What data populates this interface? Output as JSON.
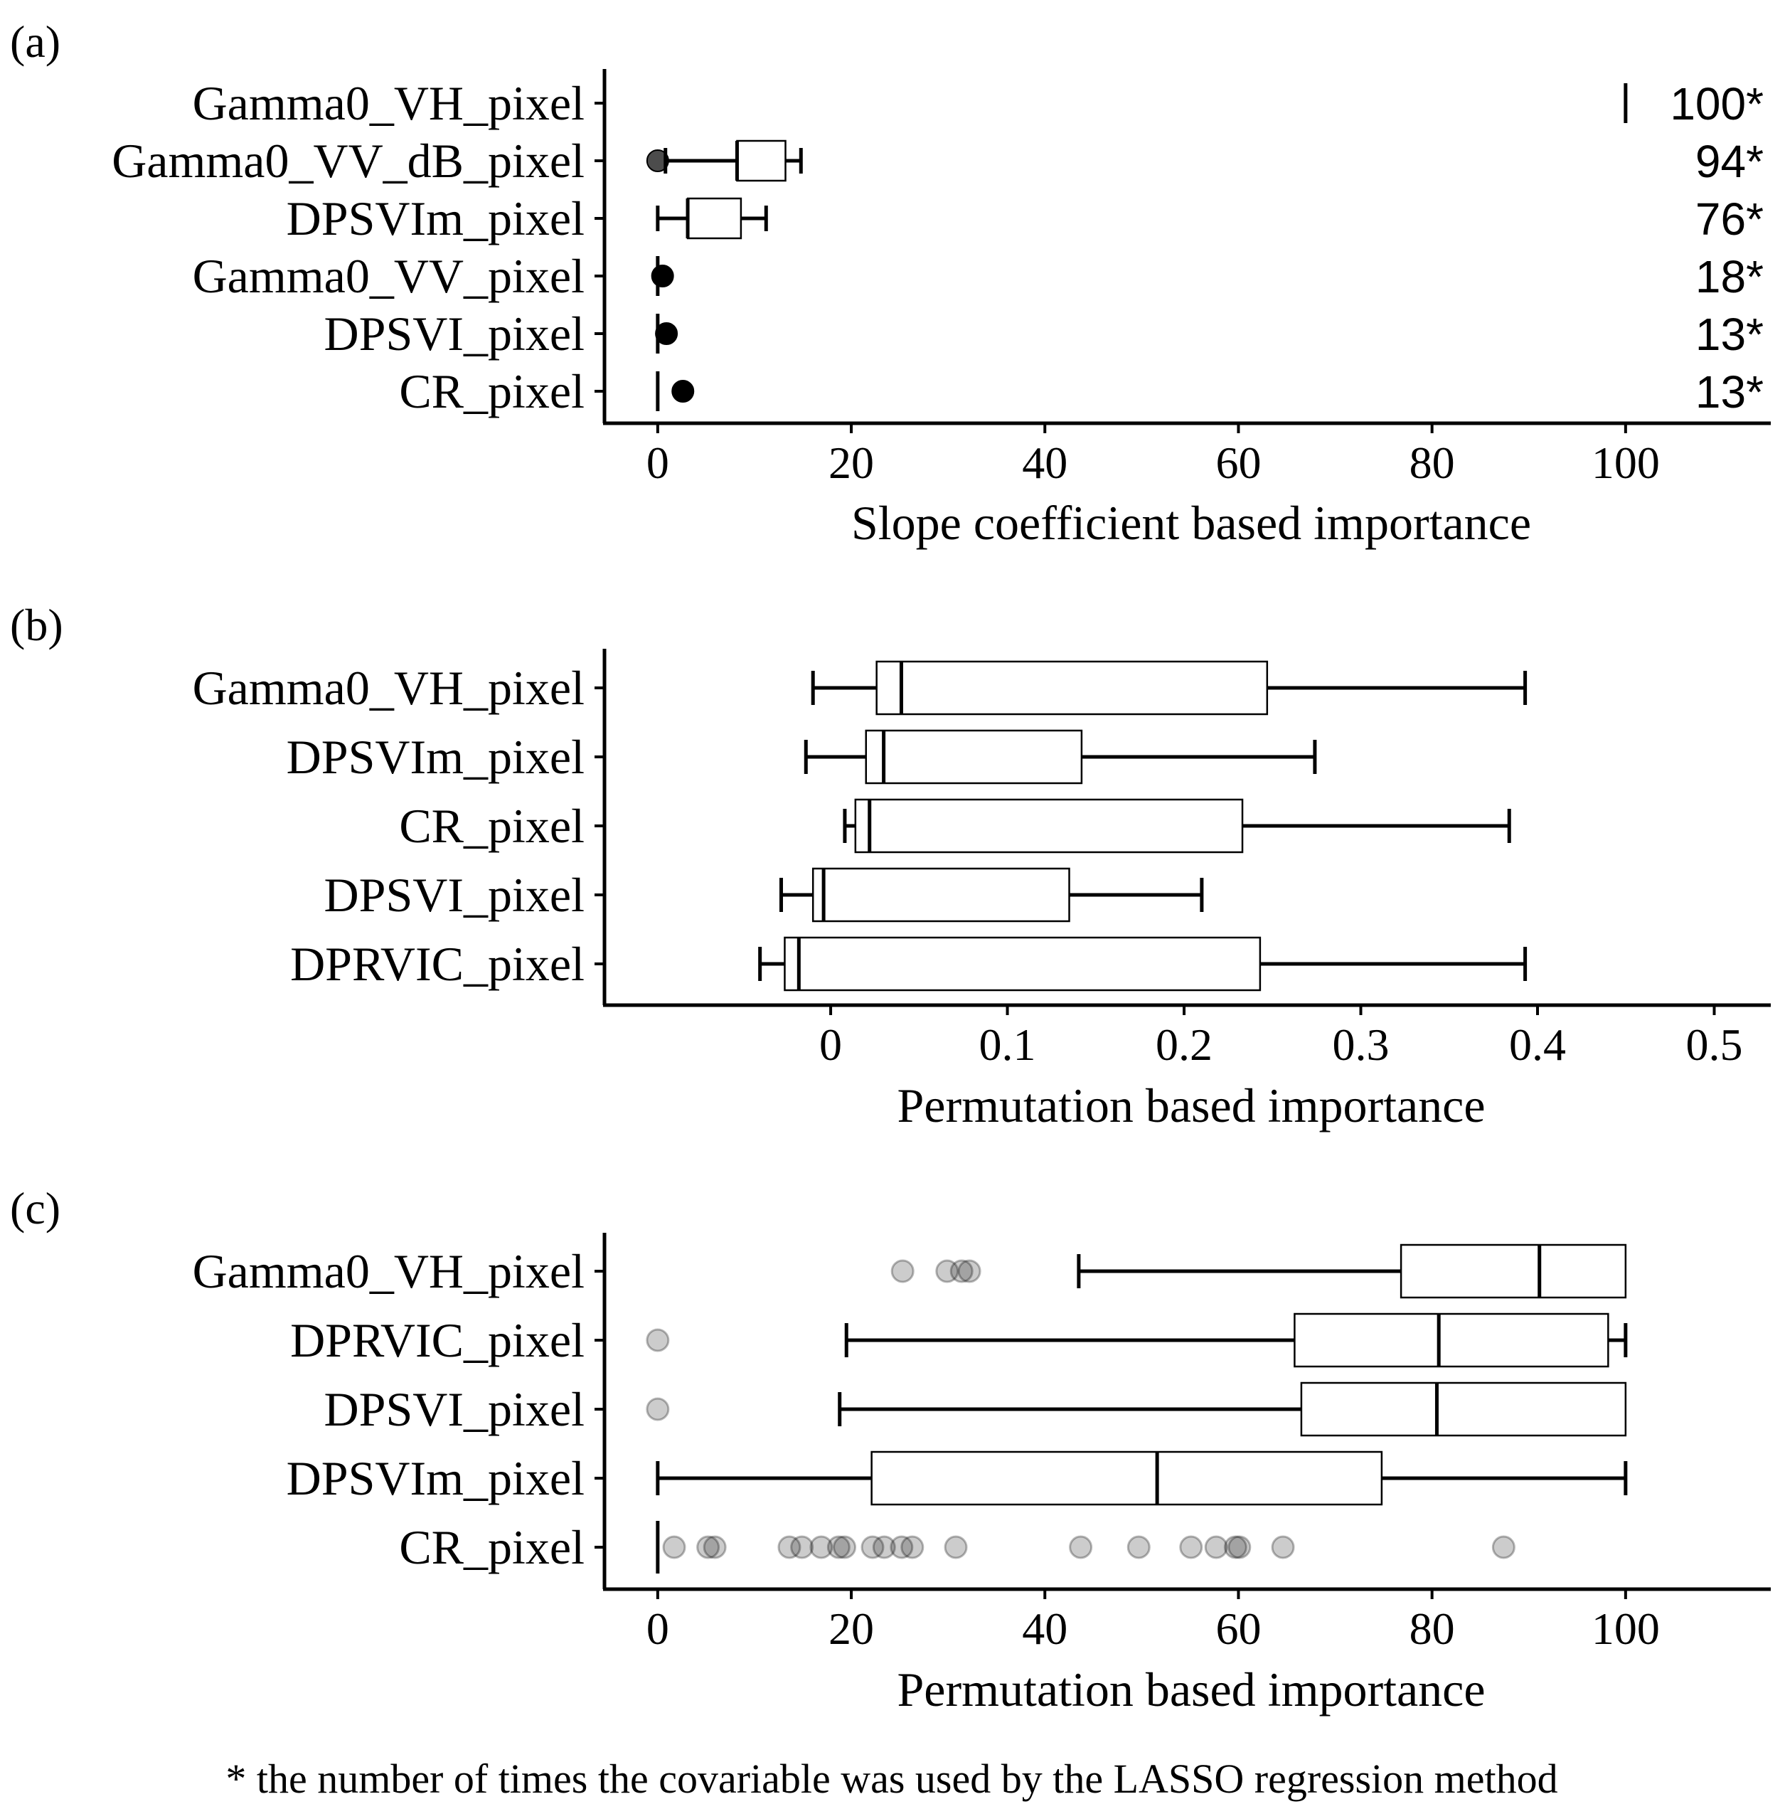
{
  "chart_data": [
    {
      "panel": "(a)",
      "type": "boxplot",
      "xlabel": "Slope coefficient based importance",
      "ylabel": "",
      "xlim": [
        -5.5,
        115
      ],
      "xticks": [
        0,
        20,
        40,
        60,
        80,
        100
      ],
      "xtick_labels": [
        "0",
        "20",
        "40",
        "60",
        "80",
        "100"
      ],
      "categories": [
        "Gamma0_VH_pixel",
        "Gamma0_VV_dB_pixel",
        "DPSVIm_pixel",
        "Gamma0_VV_pixel",
        "DPSVI_pixel",
        "CR_pixel"
      ],
      "boxes": [
        {
          "min": 100,
          "q1": 100,
          "median": 100,
          "q3": 100,
          "max": 100
        },
        {
          "min": 0.8,
          "q1": 8.2,
          "median": 8.2,
          "q3": 13.2,
          "max": 14.8
        },
        {
          "min": 0,
          "q1": 3.1,
          "median": 3.1,
          "q3": 8.6,
          "max": 11.2
        },
        {
          "min": 0,
          "q1": 0,
          "median": 0,
          "q3": 0,
          "max": 0
        },
        {
          "min": 0,
          "q1": 0,
          "median": 0,
          "q3": 0,
          "max": 0
        },
        {
          "min": 0,
          "q1": 0,
          "median": 0,
          "q3": 0,
          "max": 0
        }
      ],
      "outliers": [
        [],
        [
          0
        ],
        [],
        [
          0.5
        ],
        [
          0.9
        ],
        [
          2.6
        ]
      ],
      "outlier_style": "solid",
      "counts": [
        "100*",
        "94*",
        "76*",
        "18*",
        "13*",
        "13*"
      ]
    },
    {
      "panel": "(b)",
      "type": "boxplot",
      "xlabel": "Permutation based importance",
      "ylabel": "",
      "xlim": [
        -0.128,
        0.532
      ],
      "xticks": [
        0,
        0.1,
        0.2,
        0.3,
        0.4,
        0.5
      ],
      "xtick_labels": [
        "0",
        "0.1",
        "0.2",
        "0.3",
        "0.4",
        "0.5"
      ],
      "categories": [
        "Gamma0_VH_pixel",
        "DPSVIm_pixel",
        "CR_pixel",
        "DPSVI_pixel",
        "DPRVIC_pixel"
      ],
      "boxes": [
        {
          "min": -0.01,
          "q1": 0.026,
          "median": 0.04,
          "q3": 0.247,
          "max": 0.393
        },
        {
          "min": -0.014,
          "q1": 0.02,
          "median": 0.03,
          "q3": 0.142,
          "max": 0.274
        },
        {
          "min": 0.008,
          "q1": 0.014,
          "median": 0.022,
          "q3": 0.233,
          "max": 0.384
        },
        {
          "min": -0.028,
          "q1": -0.01,
          "median": -0.004,
          "q3": 0.135,
          "max": 0.21
        },
        {
          "min": -0.04,
          "q1": -0.026,
          "median": -0.018,
          "q3": 0.243,
          "max": 0.393
        }
      ],
      "outliers": [
        [],
        [],
        [],
        [],
        []
      ]
    },
    {
      "panel": "(c)",
      "type": "boxplot",
      "xlabel": "Permutation based importance",
      "ylabel": "",
      "xlim": [
        -5.5,
        115
      ],
      "xticks": [
        0,
        20,
        40,
        60,
        80,
        100
      ],
      "xtick_labels": [
        "0",
        "20",
        "40",
        "60",
        "80",
        "100"
      ],
      "categories": [
        "Gamma0_VH_pixel",
        "DPRVIC_pixel",
        "DPSVI_pixel",
        "DPSVIm_pixel",
        "CR_pixel"
      ],
      "boxes": [
        {
          "min": 43.5,
          "q1": 76.8,
          "median": 91.1,
          "q3": 100,
          "max": 100
        },
        {
          "min": 19.5,
          "q1": 65.8,
          "median": 80.7,
          "q3": 98.2,
          "max": 100
        },
        {
          "min": 18.8,
          "q1": 66.5,
          "median": 80.5,
          "q3": 100,
          "max": 100
        },
        {
          "min": 0,
          "q1": 22.1,
          "median": 51.6,
          "q3": 74.8,
          "max": 100
        },
        {
          "min": 0,
          "q1": 0,
          "median": 0,
          "q3": 0,
          "max": 0
        }
      ],
      "outliers": [
        [
          25.3,
          29.9,
          31.4,
          32.2
        ],
        [
          0
        ],
        [
          0
        ],
        [],
        [
          1.7,
          5.2,
          5.9,
          13.6,
          14.9,
          16.9,
          18.7,
          19.3,
          22.2,
          23.4,
          25.2,
          26.3,
          30.8,
          43.7,
          49.7,
          55.1,
          57.7,
          59.7,
          60.1,
          64.6,
          87.4
        ]
      ],
      "outlier_style": "translucent"
    }
  ],
  "footnote": "* the number of times the covariable was used by the LASSO regression method"
}
